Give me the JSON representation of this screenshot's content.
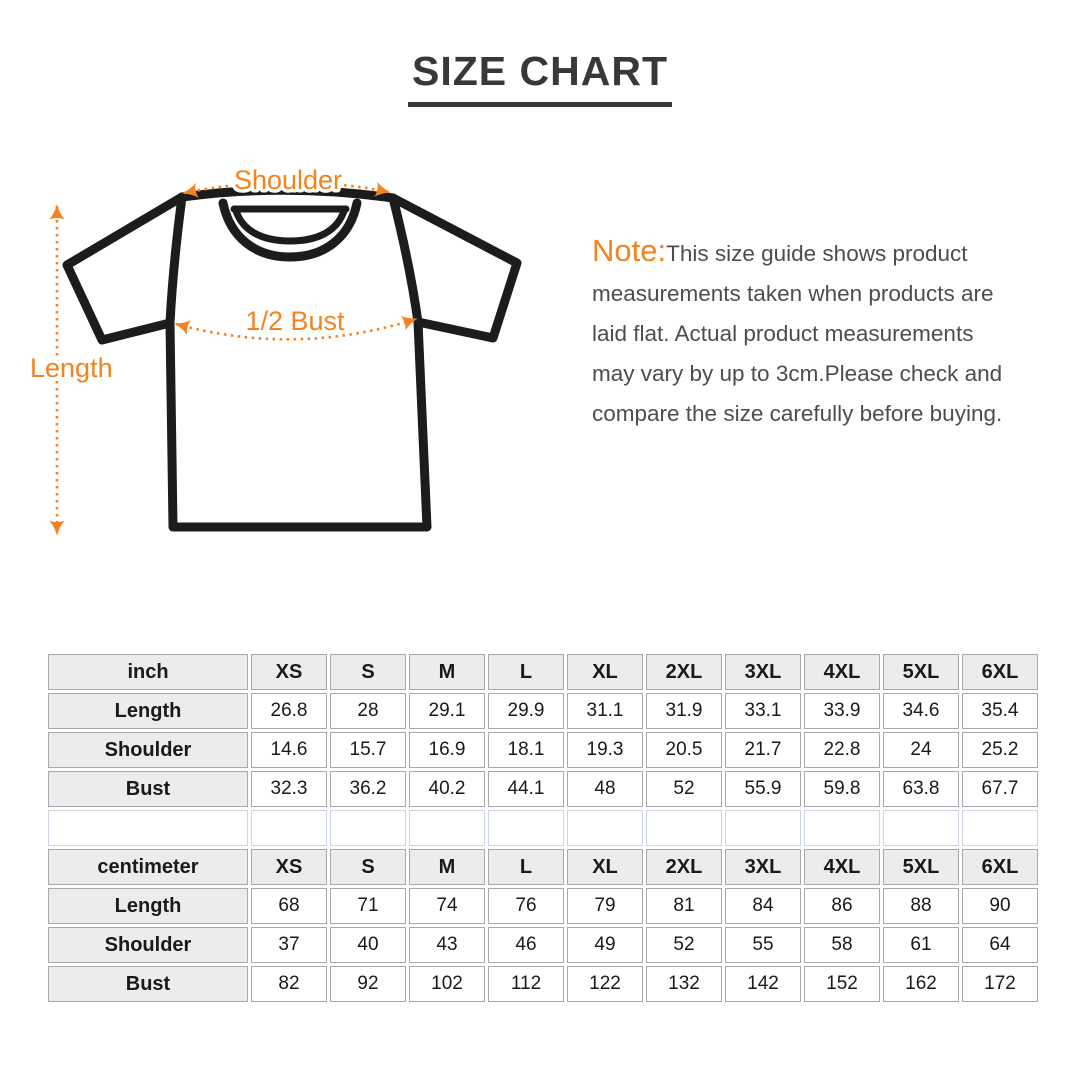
{
  "title": "SIZE CHART",
  "diagram": {
    "shoulder_label": "Shoulder",
    "bust_label": "1/2 Bust",
    "length_label": "Length",
    "accent_color": "#F5821F",
    "outline_color": "#1c1c1c"
  },
  "note": {
    "heading": "Note:",
    "body": "This size guide shows product\nmeasurements taken when products are\nlaid flat. Actual product measurements\nmay vary by up to 3cm.Please check and\ncompare the size carefully before buying."
  },
  "size_table": {
    "sizes": [
      "XS",
      "S",
      "M",
      "L",
      "XL",
      "2XL",
      "3XL",
      "4XL",
      "5XL",
      "6XL"
    ],
    "inch": {
      "unit_label": "inch",
      "rows": [
        {
          "label": "Length",
          "values": [
            "26.8",
            "28",
            "29.1",
            "29.9",
            "31.1",
            "31.9",
            "33.1",
            "33.9",
            "34.6",
            "35.4"
          ]
        },
        {
          "label": "Shoulder",
          "values": [
            "14.6",
            "15.7",
            "16.9",
            "18.1",
            "19.3",
            "20.5",
            "21.7",
            "22.8",
            "24",
            "25.2"
          ]
        },
        {
          "label": "Bust",
          "values": [
            "32.3",
            "36.2",
            "40.2",
            "44.1",
            "48",
            "52",
            "55.9",
            "59.8",
            "63.8",
            "67.7"
          ]
        }
      ]
    },
    "centimeter": {
      "unit_label": "centimeter",
      "rows": [
        {
          "label": "Length",
          "values": [
            "68",
            "71",
            "74",
            "76",
            "79",
            "81",
            "84",
            "86",
            "88",
            "90"
          ]
        },
        {
          "label": "Shoulder",
          "values": [
            "37",
            "40",
            "43",
            "46",
            "49",
            "52",
            "55",
            "58",
            "61",
            "64"
          ]
        },
        {
          "label": "Bust",
          "values": [
            "82",
            "92",
            "102",
            "112",
            "122",
            "132",
            "142",
            "152",
            "162",
            "172"
          ]
        }
      ]
    }
  }
}
